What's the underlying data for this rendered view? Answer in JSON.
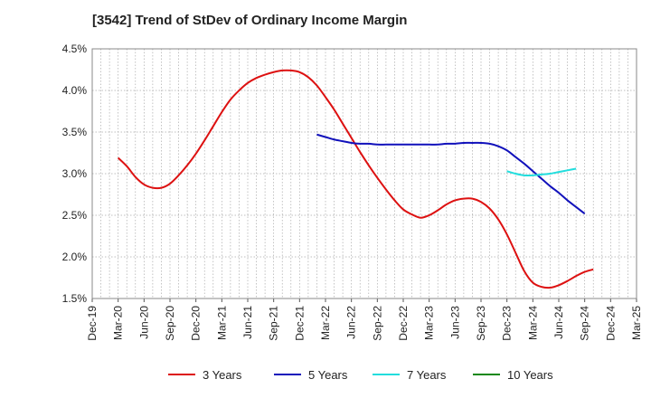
{
  "chart_data": {
    "type": "line",
    "title": "[3542]  Trend of StDev of Ordinary Income Margin",
    "xlabel": "",
    "ylabel": "",
    "x_ticks": [
      "Dec-19",
      "Mar-20",
      "Jun-20",
      "Sep-20",
      "Dec-20",
      "Mar-21",
      "Jun-21",
      "Sep-21",
      "Dec-21",
      "Mar-22",
      "Jun-22",
      "Sep-22",
      "Dec-22",
      "Mar-23",
      "Jun-23",
      "Sep-23",
      "Dec-23",
      "Mar-24",
      "Jun-24",
      "Sep-24",
      "Dec-24",
      "Mar-25"
    ],
    "y_ticks": [
      "1.5%",
      "2.0%",
      "2.5%",
      "3.0%",
      "3.5%",
      "4.0%",
      "4.5%"
    ],
    "ylim": [
      1.5,
      4.5
    ],
    "grid": true,
    "legend_position": "bottom",
    "series": [
      {
        "name": "3 Years",
        "color": "#dd1111",
        "points": [
          [
            "Mar-20",
            3.19
          ],
          [
            "Apr-20",
            3.09
          ],
          [
            "May-20",
            2.96
          ],
          [
            "Jun-20",
            2.87
          ],
          [
            "Jul-20",
            2.83
          ],
          [
            "Aug-20",
            2.83
          ],
          [
            "Sep-20",
            2.88
          ],
          [
            "Oct-20",
            2.98
          ],
          [
            "Nov-20",
            3.1
          ],
          [
            "Dec-20",
            3.24
          ],
          [
            "Jan-21",
            3.4
          ],
          [
            "Feb-21",
            3.57
          ],
          [
            "Mar-21",
            3.74
          ],
          [
            "Apr-21",
            3.89
          ],
          [
            "May-21",
            4.0
          ],
          [
            "Jun-21",
            4.09
          ],
          [
            "Jul-21",
            4.15
          ],
          [
            "Aug-21",
            4.19
          ],
          [
            "Sep-21",
            4.22
          ],
          [
            "Oct-21",
            4.24
          ],
          [
            "Nov-21",
            4.24
          ],
          [
            "Dec-21",
            4.22
          ],
          [
            "Jan-22",
            4.16
          ],
          [
            "Feb-22",
            4.06
          ],
          [
            "Mar-22",
            3.92
          ],
          [
            "Apr-22",
            3.77
          ],
          [
            "May-22",
            3.6
          ],
          [
            "Jun-22",
            3.43
          ],
          [
            "Jul-22",
            3.26
          ],
          [
            "Aug-22",
            3.1
          ],
          [
            "Sep-22",
            2.95
          ],
          [
            "Oct-22",
            2.81
          ],
          [
            "Nov-22",
            2.68
          ],
          [
            "Dec-22",
            2.57
          ],
          [
            "Jan-23",
            2.51
          ],
          [
            "Feb-23",
            2.47
          ],
          [
            "Mar-23",
            2.5
          ],
          [
            "Apr-23",
            2.56
          ],
          [
            "May-23",
            2.63
          ],
          [
            "Jun-23",
            2.68
          ],
          [
            "Jul-23",
            2.7
          ],
          [
            "Aug-23",
            2.7
          ],
          [
            "Sep-23",
            2.66
          ],
          [
            "Oct-23",
            2.58
          ],
          [
            "Nov-23",
            2.45
          ],
          [
            "Dec-23",
            2.27
          ],
          [
            "Jan-24",
            2.05
          ],
          [
            "Feb-24",
            1.83
          ],
          [
            "Mar-24",
            1.69
          ],
          [
            "Apr-24",
            1.64
          ],
          [
            "May-24",
            1.63
          ],
          [
            "Jun-24",
            1.66
          ],
          [
            "Jul-24",
            1.71
          ],
          [
            "Aug-24",
            1.77
          ],
          [
            "Sep-24",
            1.82
          ],
          [
            "Oct-24",
            1.85
          ]
        ]
      },
      {
        "name": "5 Years",
        "color": "#1111bb",
        "points": [
          [
            "Feb-22",
            3.47
          ],
          [
            "Mar-22",
            3.44
          ],
          [
            "Apr-22",
            3.41
          ],
          [
            "May-22",
            3.39
          ],
          [
            "Jun-22",
            3.37
          ],
          [
            "Jul-22",
            3.36
          ],
          [
            "Aug-22",
            3.36
          ],
          [
            "Sep-22",
            3.35
          ],
          [
            "Oct-22",
            3.35
          ],
          [
            "Nov-22",
            3.35
          ],
          [
            "Dec-22",
            3.35
          ],
          [
            "Jan-23",
            3.35
          ],
          [
            "Feb-23",
            3.35
          ],
          [
            "Mar-23",
            3.35
          ],
          [
            "Apr-23",
            3.35
          ],
          [
            "May-23",
            3.36
          ],
          [
            "Jun-23",
            3.36
          ],
          [
            "Jul-23",
            3.37
          ],
          [
            "Aug-23",
            3.37
          ],
          [
            "Sep-23",
            3.37
          ],
          [
            "Oct-23",
            3.36
          ],
          [
            "Nov-23",
            3.33
          ],
          [
            "Dec-23",
            3.28
          ],
          [
            "Jan-24",
            3.2
          ],
          [
            "Feb-24",
            3.12
          ],
          [
            "Mar-24",
            3.03
          ],
          [
            "Apr-24",
            2.94
          ],
          [
            "May-24",
            2.85
          ],
          [
            "Jun-24",
            2.77
          ],
          [
            "Jul-24",
            2.68
          ],
          [
            "Aug-24",
            2.6
          ],
          [
            "Sep-24",
            2.52
          ]
        ]
      },
      {
        "name": "7 Years",
        "color": "#22dddd",
        "points": [
          [
            "Dec-23",
            3.03
          ],
          [
            "Jan-24",
            3.0
          ],
          [
            "Feb-24",
            2.98
          ],
          [
            "Mar-24",
            2.98
          ],
          [
            "Apr-24",
            2.99
          ],
          [
            "May-24",
            3.0
          ],
          [
            "Jun-24",
            3.02
          ],
          [
            "Jul-24",
            3.04
          ],
          [
            "Aug-24",
            3.06
          ]
        ]
      },
      {
        "name": "10 Years",
        "color": "#118811",
        "points": []
      }
    ]
  }
}
